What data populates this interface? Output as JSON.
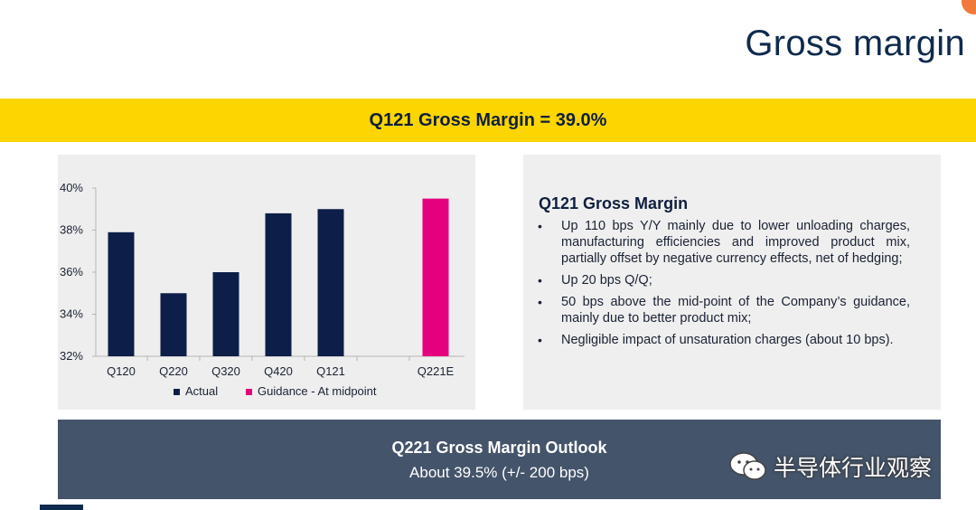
{
  "slide": {
    "title": "Gross margin",
    "banner": "Q121 Gross Margin = 39.0%"
  },
  "chart_data": {
    "type": "bar",
    "categories": [
      "Q120",
      "Q220",
      "Q320",
      "Q420",
      "Q121",
      "",
      "Q221E"
    ],
    "series": [
      {
        "name": "Actual",
        "color": "#0d1f48",
        "values": [
          37.9,
          35.0,
          36.0,
          38.8,
          39.0,
          null,
          null
        ]
      },
      {
        "name": "Guidance - At midpoint",
        "color": "#e5007d",
        "values": [
          null,
          null,
          null,
          null,
          null,
          null,
          39.5
        ]
      }
    ],
    "yticks": [
      "32%",
      "34%",
      "36%",
      "38%",
      "40%"
    ],
    "ylim": [
      32,
      40
    ],
    "grid": false,
    "legend_position": "bottom"
  },
  "details": {
    "heading": "Q121 Gross Margin",
    "bullet_char": "•",
    "bullets": [
      "Up 110 bps Y/Y mainly due to lower unloading charges, manufacturing efficiencies and improved product mix, partially offset by negative currency effects, net of hedging;",
      "Up 20 bps Q/Q;",
      "50 bps above the mid-point of the Company’s guidance, mainly due to better product mix;",
      "Negligible impact of unsaturation charges (about 10 bps)."
    ]
  },
  "outlook": {
    "title": "Q221 Gross Margin Outlook",
    "subtitle": "About 39.5% (+/- 200 bps)"
  },
  "watermark": {
    "text": "半导体行业观察",
    "icon": "wechat-icon"
  }
}
